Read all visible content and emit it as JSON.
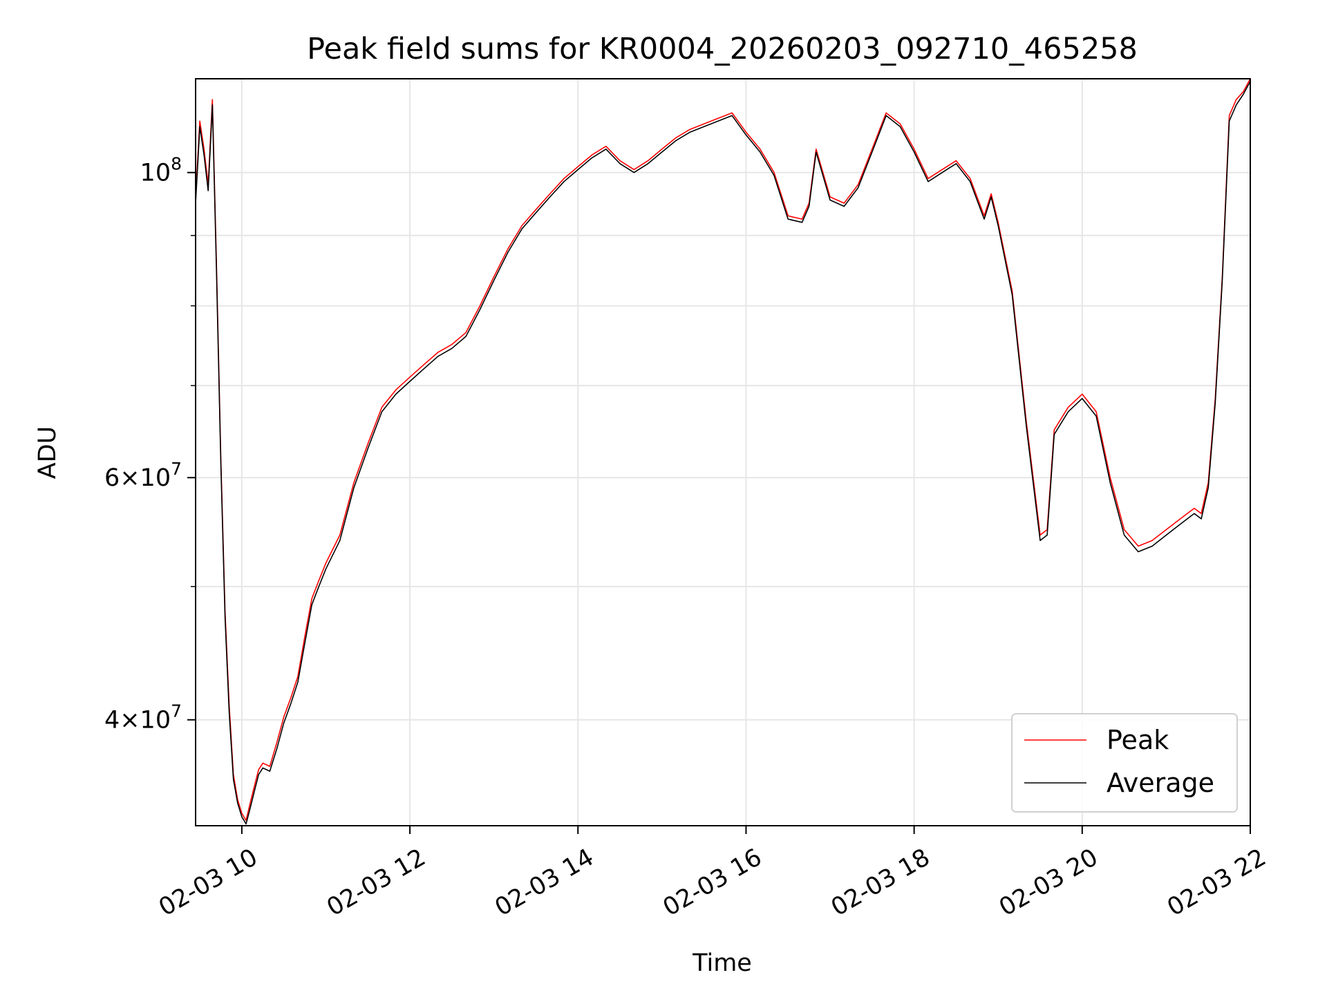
{
  "chart_data": {
    "type": "line",
    "title": "Peak field sums for KR0004_20260203_092710_465258",
    "xlabel": "Time",
    "ylabel": "ADU",
    "yscale": "log",
    "xlim": [
      "02-03 09:27",
      "02-03 22:00"
    ],
    "ylim": [
      33500000,
      117000000
    ],
    "grid": true,
    "legend_position": "lower-right",
    "x_ticks": [
      "02-03 10",
      "02-03 12",
      "02-03 14",
      "02-03 16",
      "02-03 18",
      "02-03 20",
      "02-03 22"
    ],
    "x_tick_times": [
      "02-03 10:00",
      "02-03 12:00",
      "02-03 14:00",
      "02-03 16:00",
      "02-03 18:00",
      "02-03 20:00",
      "02-03 22:00"
    ],
    "y_tick_labels": [
      {
        "value": 40000000,
        "mantissa": "4",
        "exponent": "7"
      },
      {
        "value": 60000000,
        "mantissa": "6",
        "exponent": "7"
      },
      {
        "value": 100000000,
        "mantissa": "",
        "exponent": "8"
      }
    ],
    "y_minor_grid": [
      50000000,
      70000000,
      80000000,
      90000000
    ],
    "series": [
      {
        "name": "Peak",
        "color": "#ff0000",
        "x": [
          "02-03 09:27",
          "02-03 09:30",
          "02-03 09:33",
          "02-03 09:36",
          "02-03 09:39",
          "02-03 09:42",
          "02-03 09:45",
          "02-03 09:48",
          "02-03 09:51",
          "02-03 09:54",
          "02-03 09:57",
          "02-03 10:00",
          "02-03 10:03",
          "02-03 10:06",
          "02-03 10:09",
          "02-03 10:12",
          "02-03 10:15",
          "02-03 10:20",
          "02-03 10:25",
          "02-03 10:30",
          "02-03 10:35",
          "02-03 10:40",
          "02-03 10:45",
          "02-03 10:50",
          "02-03 10:55",
          "02-03 11:00",
          "02-03 11:10",
          "02-03 11:20",
          "02-03 11:30",
          "02-03 11:40",
          "02-03 11:50",
          "02-03 12:00",
          "02-03 12:10",
          "02-03 12:20",
          "02-03 12:30",
          "02-03 12:40",
          "02-03 12:50",
          "02-03 13:00",
          "02-03 13:10",
          "02-03 13:20",
          "02-03 13:30",
          "02-03 13:40",
          "02-03 13:50",
          "02-03 14:00",
          "02-03 14:10",
          "02-03 14:20",
          "02-03 14:30",
          "02-03 14:40",
          "02-03 14:50",
          "02-03 15:00",
          "02-03 15:10",
          "02-03 15:20",
          "02-03 15:30",
          "02-03 15:40",
          "02-03 15:50",
          "02-03 16:00",
          "02-03 16:10",
          "02-03 16:20",
          "02-03 16:30",
          "02-03 16:40",
          "02-03 16:45",
          "02-03 16:50",
          "02-03 17:00",
          "02-03 17:10",
          "02-03 17:20",
          "02-03 17:30",
          "02-03 17:40",
          "02-03 17:50",
          "02-03 18:00",
          "02-03 18:10",
          "02-03 18:20",
          "02-03 18:30",
          "02-03 18:40",
          "02-03 18:50",
          "02-03 18:55",
          "02-03 19:00",
          "02-03 19:10",
          "02-03 19:20",
          "02-03 19:30",
          "02-03 19:35",
          "02-03 19:40",
          "02-03 19:50",
          "02-03 20:00",
          "02-03 20:10",
          "02-03 20:20",
          "02-03 20:30",
          "02-03 20:40",
          "02-03 20:50",
          "02-03 21:00",
          "02-03 21:10",
          "02-03 21:20",
          "02-03 21:25",
          "02-03 21:30",
          "02-03 21:35",
          "02-03 21:40",
          "02-03 21:45",
          "02-03 21:50",
          "02-03 21:55",
          "02-03 22:00"
        ],
        "y": [
          96000000,
          109000000,
          104000000,
          98000000,
          113000000,
          85000000,
          62000000,
          48000000,
          41000000,
          36500000,
          35000000,
          34200000,
          33800000,
          34800000,
          35800000,
          36800000,
          37200000,
          37000000,
          38500000,
          40200000,
          41500000,
          43000000,
          46000000,
          49000000,
          50500000,
          52000000,
          54500000,
          59500000,
          63500000,
          67500000,
          69500000,
          71000000,
          72500000,
          74000000,
          75000000,
          76500000,
          80000000,
          84000000,
          88000000,
          91500000,
          94000000,
          96500000,
          99000000,
          101000000,
          103000000,
          104500000,
          102000000,
          100500000,
          102000000,
          104000000,
          106000000,
          107500000,
          108500000,
          109500000,
          110500000,
          107000000,
          104000000,
          100000000,
          93000000,
          92500000,
          95000000,
          104000000,
          96000000,
          95000000,
          98000000,
          104000000,
          110500000,
          108500000,
          104000000,
          99000000,
          100500000,
          102000000,
          99000000,
          93000000,
          96500000,
          92000000,
          82000000,
          66000000,
          54500000,
          55000000,
          65000000,
          67500000,
          69000000,
          67000000,
          60000000,
          55000000,
          53500000,
          54000000,
          55000000,
          56000000,
          57000000,
          56500000,
          59500000,
          68500000,
          84000000,
          110000000,
          113000000,
          114500000,
          117000000
        ]
      },
      {
        "name": "Average",
        "color": "#000000",
        "x": [
          "02-03 09:27",
          "02-03 09:30",
          "02-03 09:33",
          "02-03 09:36",
          "02-03 09:39",
          "02-03 09:42",
          "02-03 09:45",
          "02-03 09:48",
          "02-03 09:51",
          "02-03 09:54",
          "02-03 09:57",
          "02-03 10:00",
          "02-03 10:03",
          "02-03 10:06",
          "02-03 10:09",
          "02-03 10:12",
          "02-03 10:15",
          "02-03 10:20",
          "02-03 10:25",
          "02-03 10:30",
          "02-03 10:35",
          "02-03 10:40",
          "02-03 10:45",
          "02-03 10:50",
          "02-03 10:55",
          "02-03 11:00",
          "02-03 11:10",
          "02-03 11:20",
          "02-03 11:30",
          "02-03 11:40",
          "02-03 11:50",
          "02-03 12:00",
          "02-03 12:10",
          "02-03 12:20",
          "02-03 12:30",
          "02-03 12:40",
          "02-03 12:50",
          "02-03 13:00",
          "02-03 13:10",
          "02-03 13:20",
          "02-03 13:30",
          "02-03 13:40",
          "02-03 13:50",
          "02-03 14:00",
          "02-03 14:10",
          "02-03 14:20",
          "02-03 14:30",
          "02-03 14:40",
          "02-03 14:50",
          "02-03 15:00",
          "02-03 15:10",
          "02-03 15:20",
          "02-03 15:30",
          "02-03 15:40",
          "02-03 15:50",
          "02-03 16:00",
          "02-03 16:10",
          "02-03 16:20",
          "02-03 16:30",
          "02-03 16:40",
          "02-03 16:45",
          "02-03 16:50",
          "02-03 17:00",
          "02-03 17:10",
          "02-03 17:20",
          "02-03 17:30",
          "02-03 17:40",
          "02-03 17:50",
          "02-03 18:00",
          "02-03 18:10",
          "02-03 18:20",
          "02-03 18:30",
          "02-03 18:40",
          "02-03 18:50",
          "02-03 18:55",
          "02-03 19:00",
          "02-03 19:10",
          "02-03 19:20",
          "02-03 19:30",
          "02-03 19:35",
          "02-03 19:40",
          "02-03 19:50",
          "02-03 20:00",
          "02-03 20:10",
          "02-03 20:20",
          "02-03 20:30",
          "02-03 20:40",
          "02-03 20:50",
          "02-03 21:00",
          "02-03 21:10",
          "02-03 21:20",
          "02-03 21:25",
          "02-03 21:30",
          "02-03 21:35",
          "02-03 21:40",
          "02-03 21:45",
          "02-03 21:50",
          "02-03 21:55",
          "02-03 22:00"
        ],
        "y": [
          95000000,
          108000000,
          103000000,
          97000000,
          112000000,
          84000000,
          61500000,
          47500000,
          40500000,
          36200000,
          34800000,
          34000000,
          33600000,
          34500000,
          35500000,
          36500000,
          36900000,
          36700000,
          38100000,
          39800000,
          41100000,
          42600000,
          45500000,
          48500000,
          50000000,
          51500000,
          54000000,
          59000000,
          63000000,
          67000000,
          69000000,
          70500000,
          72000000,
          73500000,
          74500000,
          76000000,
          79500000,
          83500000,
          87500000,
          91000000,
          93500000,
          96000000,
          98500000,
          100500000,
          102500000,
          104000000,
          101500000,
          100000000,
          101500000,
          103500000,
          105500000,
          107000000,
          108000000,
          109000000,
          110000000,
          106500000,
          103500000,
          99500000,
          92500000,
          92000000,
          94500000,
          103500000,
          95500000,
          94500000,
          97500000,
          103500000,
          110000000,
          108000000,
          103500000,
          98500000,
          100000000,
          101500000,
          98500000,
          92500000,
          96000000,
          91500000,
          81500000,
          65500000,
          54000000,
          54500000,
          64500000,
          67000000,
          68500000,
          66500000,
          59500000,
          54500000,
          53000000,
          53500000,
          54500000,
          55500000,
          56500000,
          56000000,
          59000000,
          68000000,
          83500000,
          109000000,
          112000000,
          114000000,
          116500000
        ]
      }
    ]
  }
}
